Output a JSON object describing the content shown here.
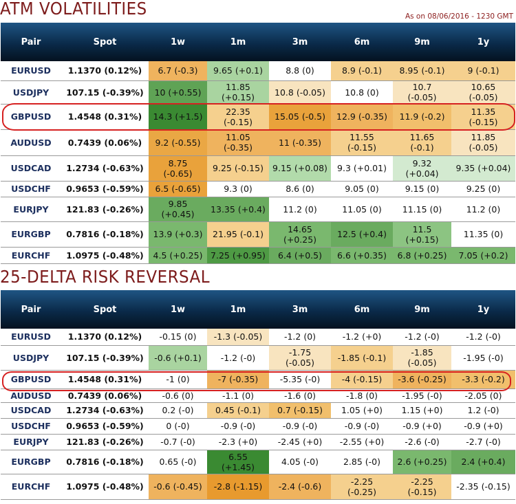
{
  "atm": {
    "title": "ATM VOLATILITIES",
    "as_of": "As on 08/06/2016 - 1230 GMT",
    "headers": [
      "Pair",
      "Spot",
      "1w",
      "1m",
      "3m",
      "6m",
      "9m",
      "1y"
    ],
    "rows": [
      {
        "pair": "EURUSD",
        "spot": "1.1370 (0.12%)",
        "cells": [
          {
            "v": "6.7",
            "d": "(-0.3)",
            "c": "#efb35e"
          },
          {
            "v": "9.65",
            "d": "(+0.1)",
            "c": "#a9d4a0"
          },
          {
            "v": "8.8",
            "d": "(0)",
            "c": "#ffffff"
          },
          {
            "v": "8.9",
            "d": "(-0.1)",
            "c": "#f5d08e"
          },
          {
            "v": "8.95",
            "d": "(-0.1)",
            "c": "#f5d08e"
          },
          {
            "v": "9",
            "d": "(-0.1)",
            "c": "#f5d08e"
          }
        ]
      },
      {
        "pair": "USDJPY",
        "spot": "107.15 (-0.39%)",
        "cells": [
          {
            "v": "10",
            "d": "(+0.55)",
            "c": "#5fa355"
          },
          {
            "v": "11.85",
            "d": "(+0.15)",
            "c": "#a9d4a0",
            "w": 1
          },
          {
            "v": "10.8",
            "d": "(-0.05)",
            "c": "#f8e4bf"
          },
          {
            "v": "10.8",
            "d": "(0)",
            "c": "#ffffff"
          },
          {
            "v": "10.7",
            "d": "(-0.05)",
            "c": "#f8e4bf",
            "w": 1
          },
          {
            "v": "10.65",
            "d": "(-0.05)",
            "c": "#f8e4bf",
            "w": 1
          }
        ]
      },
      {
        "pair": "GBPUSD",
        "spot": "1.4548 (0.31%)",
        "cells": [
          {
            "v": "14.3",
            "d": "(+1.5)",
            "c": "#3a8a32"
          },
          {
            "v": "22.35",
            "d": "(-0.15)",
            "c": "#f5d08e",
            "w": 1
          },
          {
            "v": "15.05",
            "d": "(-0.5)",
            "c": "#e9a23b"
          },
          {
            "v": "12.9",
            "d": "(-0.35)",
            "c": "#efb35e"
          },
          {
            "v": "11.9",
            "d": "(-0.2)",
            "c": "#f1bf6c"
          },
          {
            "v": "11.35",
            "d": "(-0.15)",
            "c": "#f5d08e",
            "w": 1
          }
        ]
      },
      {
        "pair": "AUDUSD",
        "spot": "0.7439 (0.06%)",
        "cells": [
          {
            "v": "9.2",
            "d": "(-0.55)",
            "c": "#eaa744"
          },
          {
            "v": "11.05",
            "d": "(-0.35)",
            "c": "#efb35e",
            "w": 1
          },
          {
            "v": "11",
            "d": "(-0.35)",
            "c": "#efb35e"
          },
          {
            "v": "11.55",
            "d": "(-0.15)",
            "c": "#f5d08e",
            "w": 1
          },
          {
            "v": "11.65",
            "d": "(-0.1)",
            "c": "#f5d08e",
            "w": 1
          },
          {
            "v": "11.85",
            "d": "(-0.05)",
            "c": "#f8e4bf",
            "w": 1
          }
        ]
      },
      {
        "pair": "USDCAD",
        "spot": "1.2734 (-0.63%)",
        "cells": [
          {
            "v": "8.75",
            "d": "(-0.65)",
            "c": "#e9a23b",
            "w": 1
          },
          {
            "v": "9.25",
            "d": "(-0.15)",
            "c": "#f5d08e"
          },
          {
            "v": "9.15",
            "d": "(+0.08)",
            "c": "#b2dbab"
          },
          {
            "v": "9.3",
            "d": "(+0.01)",
            "c": "#ffffff"
          },
          {
            "v": "9.32",
            "d": "(+0.04)",
            "c": "#d3ead0",
            "w": 1
          },
          {
            "v": "9.35",
            "d": "(+0.04)",
            "c": "#d3ead0"
          }
        ]
      },
      {
        "pair": "USDCHF",
        "spot": "0.9653 (-0.59%)",
        "cells": [
          {
            "v": "6.5",
            "d": "(-0.65)",
            "c": "#e9a23b"
          },
          {
            "v": "9.3",
            "d": "(0)",
            "c": "#ffffff"
          },
          {
            "v": "8.6",
            "d": "(0)",
            "c": "#ffffff"
          },
          {
            "v": "9.05",
            "d": "(0)",
            "c": "#ffffff"
          },
          {
            "v": "9.15",
            "d": "(0)",
            "c": "#ffffff"
          },
          {
            "v": "9.25",
            "d": "(0)",
            "c": "#ffffff"
          }
        ]
      },
      {
        "pair": "EURJPY",
        "spot": "121.83 (-0.26%)",
        "cells": [
          {
            "v": "9.85",
            "d": "(+0.45)",
            "c": "#6aab5f",
            "w": 1
          },
          {
            "v": "13.35",
            "d": "(+0.4)",
            "c": "#6aab5f"
          },
          {
            "v": "11.2",
            "d": "(0)",
            "c": "#ffffff"
          },
          {
            "v": "11.05",
            "d": "(0)",
            "c": "#ffffff"
          },
          {
            "v": "11.15",
            "d": "(0)",
            "c": "#ffffff"
          },
          {
            "v": "11.2",
            "d": "(0)",
            "c": "#ffffff"
          }
        ]
      },
      {
        "pair": "EURGBP",
        "spot": "0.7816 (-0.18%)",
        "cells": [
          {
            "v": "13.9",
            "d": "(+0.3)",
            "c": "#7ab86e"
          },
          {
            "v": "21.95",
            "d": "(-0.1)",
            "c": "#f5d08e"
          },
          {
            "v": "14.65",
            "d": "(+0.25)",
            "c": "#7ab86e",
            "w": 1
          },
          {
            "v": "12.5",
            "d": "(+0.4)",
            "c": "#6aab5f"
          },
          {
            "v": "11.5",
            "d": "(+0.15)",
            "c": "#8cc482",
            "w": 1
          },
          {
            "v": "11.35",
            "d": "(0)",
            "c": "#ffffff"
          }
        ]
      },
      {
        "pair": "EURCHF",
        "spot": "1.0975 (-0.48%)",
        "cells": [
          {
            "v": "4.5",
            "d": "(+0.25)",
            "c": "#7ab86e"
          },
          {
            "v": "7.25",
            "d": "(+0.95)",
            "c": "#4e9a44"
          },
          {
            "v": "6.4",
            "d": "(+0.5)",
            "c": "#6aab5f"
          },
          {
            "v": "6.6",
            "d": "(+0.35)",
            "c": "#7ab86e"
          },
          {
            "v": "6.8",
            "d": "(+0.25)",
            "c": "#7ab86e"
          },
          {
            "v": "7.05",
            "d": "(+0.2)",
            "c": "#7ab86e"
          }
        ]
      }
    ]
  },
  "rr": {
    "title": "25-DELTA RISK REVERSAL",
    "headers": [
      "Pair",
      "Spot",
      "1w",
      "1m",
      "3m",
      "6m",
      "9m",
      "1y"
    ],
    "rows": [
      {
        "pair": "EURUSD",
        "spot": "1.1370 (0.12%)",
        "cells": [
          {
            "v": "-0.15",
            "d": "(0)",
            "c": "#ffffff"
          },
          {
            "v": "-1.3",
            "d": "(-0.05)",
            "c": "#f8e4bf"
          },
          {
            "v": "-1.2",
            "d": "(0)",
            "c": "#ffffff"
          },
          {
            "v": "-1.2",
            "d": "(+0)",
            "c": "#ffffff"
          },
          {
            "v": "-1.2",
            "d": "(-0)",
            "c": "#ffffff"
          },
          {
            "v": "-1.2",
            "d": "(-0)",
            "c": "#ffffff"
          }
        ]
      },
      {
        "pair": "USDJPY",
        "spot": "107.15 (-0.39%)",
        "cells": [
          {
            "v": "-0.6",
            "d": "(+0.1)",
            "c": "#a9d4a0"
          },
          {
            "v": "-1.2",
            "d": "(-0)",
            "c": "#ffffff"
          },
          {
            "v": "-1.75",
            "d": "(-0.05)",
            "c": "#f8e4bf",
            "w": 1
          },
          {
            "v": "-1.85",
            "d": "(-0.1)",
            "c": "#f5d08e"
          },
          {
            "v": "-1.85",
            "d": "(-0.05)",
            "c": "#f8e4bf",
            "w": 1
          },
          {
            "v": "-1.95",
            "d": "(-0)",
            "c": "#ffffff"
          }
        ]
      },
      {
        "pair": "GBPUSD",
        "spot": "1.4548 (0.31%)",
        "cells": [
          {
            "v": "-1",
            "d": "(0)",
            "c": "#ffffff"
          },
          {
            "v": "-7",
            "d": "(-0.35)",
            "c": "#efb35e"
          },
          {
            "v": "-5.35",
            "d": "(-0)",
            "c": "#ffffff"
          },
          {
            "v": "-4",
            "d": "(-0.15)",
            "c": "#f5d08e"
          },
          {
            "v": "-3.6",
            "d": "(-0.25)",
            "c": "#efb35e"
          },
          {
            "v": "-3.3",
            "d": "(-0.2)",
            "c": "#f1bf6c"
          }
        ]
      },
      {
        "pair": "AUDUSD",
        "spot": "0.7439 (0.06%)",
        "cells": [
          {
            "v": "-0.6",
            "d": "(0)",
            "c": "#ffffff"
          },
          {
            "v": "-1.1",
            "d": "(0)",
            "c": "#ffffff"
          },
          {
            "v": "-1.6",
            "d": "(0)",
            "c": "#ffffff"
          },
          {
            "v": "-1.8",
            "d": "(0)",
            "c": "#ffffff"
          },
          {
            "v": "-1.95",
            "d": "(-0)",
            "c": "#ffffff"
          },
          {
            "v": "-2.05",
            "d": "(0)",
            "c": "#ffffff"
          }
        ]
      },
      {
        "pair": "USDCAD",
        "spot": "1.2734 (-0.63%)",
        "cells": [
          {
            "v": "0.2",
            "d": "(-0)",
            "c": "#ffffff"
          },
          {
            "v": "0.45",
            "d": "(-0.1)",
            "c": "#f5d08e"
          },
          {
            "v": "0.7",
            "d": "(-0.15)",
            "c": "#f1bf6c"
          },
          {
            "v": "1.05",
            "d": "(+0)",
            "c": "#ffffff"
          },
          {
            "v": "1.15",
            "d": "(+0)",
            "c": "#ffffff"
          },
          {
            "v": "1.2",
            "d": "(-0)",
            "c": "#ffffff"
          }
        ]
      },
      {
        "pair": "USDCHF",
        "spot": "0.9653 (-0.59%)",
        "cells": [
          {
            "v": "0",
            "d": "(-0)",
            "c": "#ffffff"
          },
          {
            "v": "-0.9",
            "d": "(-0)",
            "c": "#ffffff"
          },
          {
            "v": "-0.9",
            "d": "(-0)",
            "c": "#ffffff"
          },
          {
            "v": "-0.9",
            "d": "(-0)",
            "c": "#ffffff"
          },
          {
            "v": "-0.9",
            "d": "(+0)",
            "c": "#ffffff"
          },
          {
            "v": "-0.9",
            "d": "(+0)",
            "c": "#ffffff"
          }
        ]
      },
      {
        "pair": "EURJPY",
        "spot": "121.83 (-0.26%)",
        "cells": [
          {
            "v": "-0.7",
            "d": "(-0)",
            "c": "#ffffff"
          },
          {
            "v": "-2.3",
            "d": "(+0)",
            "c": "#ffffff"
          },
          {
            "v": "-2.45",
            "d": "(+0)",
            "c": "#ffffff"
          },
          {
            "v": "-2.55",
            "d": "(+0)",
            "c": "#ffffff"
          },
          {
            "v": "-2.6",
            "d": "(-0)",
            "c": "#ffffff"
          },
          {
            "v": "-2.7",
            "d": "(-0)",
            "c": "#ffffff"
          }
        ]
      },
      {
        "pair": "EURGBP",
        "spot": "0.7816 (-0.18%)",
        "cells": [
          {
            "v": "0.65",
            "d": "(-0)",
            "c": "#ffffff"
          },
          {
            "v": "6.55",
            "d": "(+1.45)",
            "c": "#3a8a32",
            "w": 1
          },
          {
            "v": "4.05",
            "d": "(-0)",
            "c": "#ffffff"
          },
          {
            "v": "2.85",
            "d": "(-0)",
            "c": "#ffffff"
          },
          {
            "v": "2.6",
            "d": "(+0.25)",
            "c": "#7ab86e"
          },
          {
            "v": "2.4",
            "d": "(+0.4)",
            "c": "#6aab5f"
          }
        ]
      },
      {
        "pair": "EURCHF",
        "spot": "1.0975 (-0.48%)",
        "cells": [
          {
            "v": "-0.6",
            "d": "(-0.45)",
            "c": "#efb35e"
          },
          {
            "v": "-2.8",
            "d": "(-1.15)",
            "c": "#e89a2e"
          },
          {
            "v": "-2.4",
            "d": "(-0.6)",
            "c": "#efb35e"
          },
          {
            "v": "-2.25",
            "d": "(-0.25)",
            "c": "#f5d08e",
            "w": 1
          },
          {
            "v": "-2.25",
            "d": "(-0.15)",
            "c": "#f5d08e",
            "w": 1
          },
          {
            "v": "-2.35",
            "d": "(-0.15)",
            "c": "#ffffff"
          }
        ]
      }
    ]
  }
}
